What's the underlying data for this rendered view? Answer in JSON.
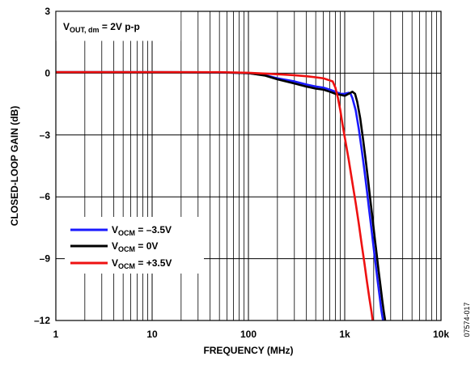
{
  "chart_data": {
    "type": "line",
    "xlabel": "FREQUENCY (MHz)",
    "ylabel": "CLOSED-LOOP GAIN (dB)",
    "x_scale": "log",
    "xlim": [
      1,
      10000
    ],
    "ylim": [
      -12,
      3
    ],
    "grid": true,
    "x_ticks": [
      {
        "value": 1,
        "label": "1"
      },
      {
        "value": 10,
        "label": "10"
      },
      {
        "value": 100,
        "label": "100"
      },
      {
        "value": 1000,
        "label": "1k"
      },
      {
        "value": 10000,
        "label": "10k"
      }
    ],
    "y_ticks": [
      {
        "value": 3,
        "label": "3"
      },
      {
        "value": 0,
        "label": "0"
      },
      {
        "value": -3,
        "label": "–3"
      },
      {
        "value": -6,
        "label": "–6"
      },
      {
        "value": -9,
        "label": "–9"
      },
      {
        "value": -12,
        "label": "–12"
      }
    ],
    "annotation": {
      "main": "V",
      "sub": "OUT",
      "sub2": ", dm",
      "rest": " = 2V p-p"
    },
    "legend_placement": "bottom-left",
    "figure_id": "07574-017",
    "series": [
      {
        "legend_main": "V",
        "legend_sub": "OCM",
        "legend_rest": " = –3.5V",
        "color": "#1a1aff",
        "points": [
          [
            1,
            0.05
          ],
          [
            10,
            0.05
          ],
          [
            50,
            0.04
          ],
          [
            100,
            0
          ],
          [
            150,
            -0.1
          ],
          [
            200,
            -0.25
          ],
          [
            300,
            -0.4
          ],
          [
            400,
            -0.55
          ],
          [
            500,
            -0.65
          ],
          [
            600,
            -0.7
          ],
          [
            700,
            -0.8
          ],
          [
            800,
            -0.9
          ],
          [
            900,
            -1.0
          ],
          [
            1000,
            -1.0
          ],
          [
            1100,
            -0.95
          ],
          [
            1150,
            -1.0
          ],
          [
            1200,
            -1.2
          ],
          [
            1300,
            -1.8
          ],
          [
            1400,
            -2.7
          ],
          [
            1500,
            -3.7
          ],
          [
            1600,
            -4.7
          ],
          [
            1700,
            -5.7
          ],
          [
            1800,
            -6.7
          ],
          [
            1900,
            -7.6
          ],
          [
            2000,
            -8.5
          ],
          [
            2100,
            -9.3
          ],
          [
            2200,
            -10.1
          ],
          [
            2300,
            -10.8
          ],
          [
            2400,
            -11.5
          ],
          [
            2500,
            -12
          ]
        ]
      },
      {
        "legend_main": "V",
        "legend_sub": "OCM",
        "legend_rest": " = 0V",
        "color": "#000000",
        "points": [
          [
            1,
            0.05
          ],
          [
            10,
            0.05
          ],
          [
            50,
            0.04
          ],
          [
            100,
            0
          ],
          [
            150,
            -0.12
          ],
          [
            200,
            -0.3
          ],
          [
            300,
            -0.5
          ],
          [
            400,
            -0.65
          ],
          [
            500,
            -0.75
          ],
          [
            600,
            -0.8
          ],
          [
            700,
            -0.9
          ],
          [
            800,
            -1.0
          ],
          [
            900,
            -1.05
          ],
          [
            1000,
            -1.1
          ],
          [
            1100,
            -1.0
          ],
          [
            1200,
            -0.9
          ],
          [
            1280,
            -1.0
          ],
          [
            1350,
            -1.4
          ],
          [
            1450,
            -2.2
          ],
          [
            1550,
            -3.2
          ],
          [
            1650,
            -4.2
          ],
          [
            1750,
            -5.2
          ],
          [
            1850,
            -6.2
          ],
          [
            1950,
            -7.1
          ],
          [
            2050,
            -8.0
          ],
          [
            2150,
            -8.8
          ],
          [
            2250,
            -9.6
          ],
          [
            2350,
            -10.3
          ],
          [
            2450,
            -11.0
          ],
          [
            2550,
            -11.6
          ],
          [
            2630,
            -12
          ]
        ]
      },
      {
        "legend_main": "V",
        "legend_sub": "OCM",
        "legend_rest": " = +3.5V",
        "color": "#ee1111",
        "points": [
          [
            1,
            0.05
          ],
          [
            10,
            0.05
          ],
          [
            50,
            0.05
          ],
          [
            100,
            0.02
          ],
          [
            200,
            -0.05
          ],
          [
            300,
            -0.1
          ],
          [
            400,
            -0.15
          ],
          [
            500,
            -0.2
          ],
          [
            600,
            -0.25
          ],
          [
            700,
            -0.35
          ],
          [
            750,
            -0.4
          ],
          [
            800,
            -0.7
          ],
          [
            850,
            -1.2
          ],
          [
            900,
            -1.8
          ],
          [
            950,
            -2.5
          ],
          [
            1000,
            -3.1
          ],
          [
            1100,
            -4.2
          ],
          [
            1200,
            -5.3
          ],
          [
            1300,
            -6.3
          ],
          [
            1400,
            -7.3
          ],
          [
            1500,
            -8.3
          ],
          [
            1600,
            -9.2
          ],
          [
            1700,
            -10.1
          ],
          [
            1800,
            -10.9
          ],
          [
            1900,
            -11.6
          ],
          [
            1950,
            -12
          ]
        ]
      }
    ]
  }
}
